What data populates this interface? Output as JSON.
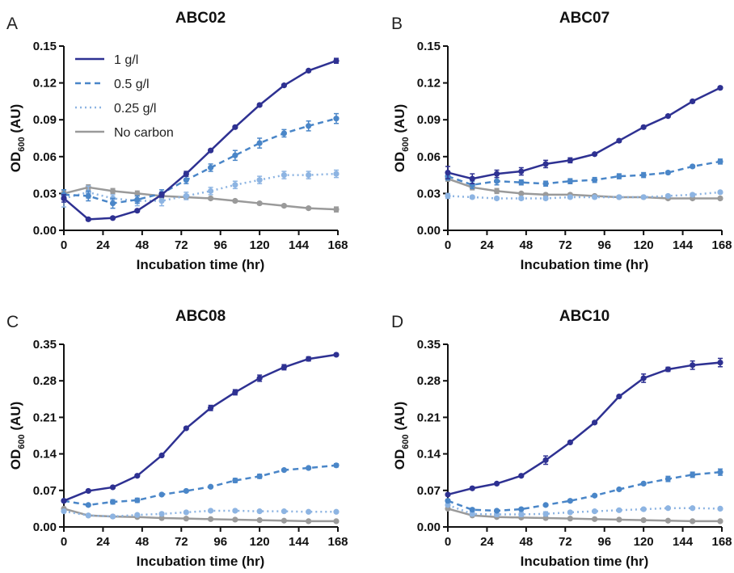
{
  "chart_data": [
    {
      "type": "line",
      "panel_letter": "A",
      "title": "ABC02",
      "xlabel": "Incubation time (hr)",
      "ylabel": {
        "main": "OD",
        "sub": "600",
        "suffix": " (AU)"
      },
      "x": [
        0,
        15,
        30,
        45,
        60,
        75,
        90,
        105,
        120,
        135,
        150,
        167
      ],
      "xticks": [
        0,
        24,
        48,
        72,
        96,
        120,
        144,
        168
      ],
      "xlim": [
        0,
        168
      ],
      "ylim": [
        0,
        0.15
      ],
      "yticks": [
        "0.00",
        "0.03",
        "0.06",
        "0.09",
        "0.12",
        "0.15"
      ],
      "legend": "top-left",
      "series": [
        {
          "name": "1 g/l",
          "color": "#2E3192",
          "dash": "solid",
          "values": [
            0.026,
            0.009,
            0.01,
            0.016,
            0.029,
            0.046,
            0.065,
            0.084,
            0.102,
            0.118,
            0.13,
            0.138
          ],
          "err": [
            0.003,
            0.001,
            0.001,
            0.001,
            0.002,
            0.002,
            0.001,
            0.001,
            0.001,
            0.001,
            0.001,
            0.002
          ]
        },
        {
          "name": "0.5 g/l",
          "color": "#4A86C8",
          "dash": "dashed",
          "values": [
            0.029,
            0.028,
            0.022,
            0.025,
            0.03,
            0.041,
            0.051,
            0.061,
            0.071,
            0.079,
            0.085,
            0.091
          ],
          "err": [
            0.004,
            0.004,
            0.004,
            0.003,
            0.003,
            0.003,
            0.003,
            0.004,
            0.004,
            0.003,
            0.004,
            0.004
          ]
        },
        {
          "name": "0.25 g/l",
          "color": "#8DB4E2",
          "dash": "dotted",
          "values": [
            0.026,
            0.031,
            0.026,
            0.024,
            0.024,
            0.028,
            0.032,
            0.037,
            0.041,
            0.045,
            0.045,
            0.046
          ],
          "err": [
            0.007,
            0.005,
            0.003,
            0.004,
            0.004,
            0.003,
            0.003,
            0.003,
            0.003,
            0.003,
            0.003,
            0.003
          ]
        },
        {
          "name": "No carbon",
          "color": "#9A9A9A",
          "dash": "solid",
          "values": [
            0.03,
            0.035,
            0.032,
            0.03,
            0.028,
            0.027,
            0.026,
            0.024,
            0.022,
            0.02,
            0.018,
            0.017
          ],
          "err": [
            0.002,
            0.002,
            0.002,
            0.002,
            0.002,
            0.001,
            0.001,
            0.001,
            0.001,
            0.001,
            0.001,
            0.002
          ]
        }
      ]
    },
    {
      "type": "line",
      "panel_letter": "B",
      "title": "ABC07",
      "xlabel": "Incubation time (hr)",
      "ylabel": {
        "main": "OD",
        "sub": "600",
        "suffix": " (AU)"
      },
      "x": [
        0,
        15,
        30,
        45,
        60,
        75,
        90,
        105,
        120,
        135,
        150,
        167
      ],
      "xticks": [
        0,
        24,
        48,
        72,
        96,
        120,
        144,
        168
      ],
      "xlim": [
        0,
        168
      ],
      "ylim": [
        0,
        0.15
      ],
      "yticks": [
        "0.00",
        "0.03",
        "0.06",
        "0.09",
        "0.12",
        "0.15"
      ],
      "series": [
        {
          "name": "1 g/l",
          "color": "#2E3192",
          "dash": "solid",
          "values": [
            0.047,
            0.042,
            0.046,
            0.048,
            0.054,
            0.057,
            0.062,
            0.073,
            0.084,
            0.093,
            0.105,
            0.116
          ],
          "err": [
            0.005,
            0.004,
            0.003,
            0.003,
            0.003,
            0.002,
            0.001,
            0.001,
            0.001,
            0.001,
            0.001,
            0.001
          ]
        },
        {
          "name": "0.5 g/l",
          "color": "#4A86C8",
          "dash": "dashed",
          "values": [
            0.044,
            0.037,
            0.04,
            0.039,
            0.038,
            0.04,
            0.041,
            0.044,
            0.045,
            0.047,
            0.052,
            0.056
          ],
          "err": [
            0.003,
            0.003,
            0.003,
            0.002,
            0.002,
            0.002,
            0.002,
            0.002,
            0.002,
            0.001,
            0.001,
            0.002
          ]
        },
        {
          "name": "0.25 g/l",
          "color": "#8DB4E2",
          "dash": "dotted",
          "values": [
            0.028,
            0.027,
            0.026,
            0.026,
            0.026,
            0.027,
            0.027,
            0.027,
            0.027,
            0.028,
            0.029,
            0.031
          ],
          "err": [
            0.002,
            0.001,
            0.001,
            0.001,
            0.001,
            0.001,
            0.001,
            0.001,
            0.001,
            0.001,
            0.001,
            0.001
          ]
        },
        {
          "name": "No carbon",
          "color": "#9A9A9A",
          "dash": "solid",
          "values": [
            0.042,
            0.035,
            0.032,
            0.03,
            0.029,
            0.029,
            0.028,
            0.027,
            0.027,
            0.026,
            0.026,
            0.026
          ],
          "err": [
            0.002,
            0.002,
            0.002,
            0.001,
            0.001,
            0.001,
            0.001,
            0.001,
            0.001,
            0.001,
            0.001,
            0.001
          ]
        }
      ]
    },
    {
      "type": "line",
      "panel_letter": "C",
      "title": "ABC08",
      "xlabel": "Incubation time (hr)",
      "ylabel": {
        "main": "OD",
        "sub": "600",
        "suffix": " (AU)"
      },
      "x": [
        0,
        15,
        30,
        45,
        60,
        75,
        90,
        105,
        120,
        135,
        150,
        167
      ],
      "xticks": [
        0,
        24,
        48,
        72,
        96,
        120,
        144,
        168
      ],
      "xlim": [
        0,
        168
      ],
      "ylim": [
        0,
        0.35
      ],
      "yticks": [
        "0.00",
        "0.07",
        "0.14",
        "0.21",
        "0.28",
        "0.35"
      ],
      "series": [
        {
          "name": "1 g/l",
          "color": "#2E3192",
          "dash": "solid",
          "values": [
            0.05,
            0.069,
            0.076,
            0.098,
            0.137,
            0.189,
            0.228,
            0.258,
            0.285,
            0.306,
            0.322,
            0.33
          ],
          "err": [
            0.002,
            0.002,
            0.002,
            0.002,
            0.002,
            0.002,
            0.005,
            0.005,
            0.006,
            0.005,
            0.004,
            0.002
          ]
        },
        {
          "name": "0.5 g/l",
          "color": "#4A86C8",
          "dash": "dashed",
          "values": [
            0.05,
            0.042,
            0.048,
            0.051,
            0.062,
            0.069,
            0.077,
            0.089,
            0.097,
            0.109,
            0.113,
            0.118
          ],
          "err": [
            0.002,
            0.002,
            0.004,
            0.004,
            0.002,
            0.002,
            0.002,
            0.004,
            0.004,
            0.002,
            0.002,
            0.003
          ]
        },
        {
          "name": "0.25 g/l",
          "color": "#8DB4E2",
          "dash": "dotted",
          "values": [
            0.03,
            0.022,
            0.02,
            0.023,
            0.025,
            0.028,
            0.031,
            0.031,
            0.03,
            0.03,
            0.029,
            0.029
          ],
          "err": [
            0.002,
            0.001,
            0.001,
            0.001,
            0.001,
            0.001,
            0.001,
            0.001,
            0.001,
            0.001,
            0.001,
            0.001
          ]
        },
        {
          "name": "No carbon",
          "color": "#9A9A9A",
          "dash": "solid",
          "values": [
            0.035,
            0.022,
            0.02,
            0.019,
            0.017,
            0.016,
            0.015,
            0.014,
            0.013,
            0.012,
            0.011,
            0.011
          ],
          "err": [
            0.002,
            0.001,
            0.001,
            0.001,
            0.001,
            0.001,
            0.001,
            0.001,
            0.001,
            0.001,
            0.001,
            0.001
          ]
        }
      ]
    },
    {
      "type": "line",
      "panel_letter": "D",
      "title": "ABC10",
      "xlabel": "Incubation time (hr)",
      "ylabel": {
        "main": "OD",
        "sub": "600",
        "suffix": " (AU)"
      },
      "x": [
        0,
        15,
        30,
        45,
        60,
        75,
        90,
        105,
        120,
        135,
        150,
        167
      ],
      "xticks": [
        0,
        24,
        48,
        72,
        96,
        120,
        144,
        168
      ],
      "xlim": [
        0,
        168
      ],
      "ylim": [
        0,
        0.35
      ],
      "yticks": [
        "0.00",
        "0.07",
        "0.14",
        "0.21",
        "0.28",
        "0.35"
      ],
      "series": [
        {
          "name": "1 g/l",
          "color": "#2E3192",
          "dash": "solid",
          "values": [
            0.062,
            0.074,
            0.083,
            0.098,
            0.128,
            0.162,
            0.2,
            0.25,
            0.285,
            0.302,
            0.31,
            0.315
          ],
          "err": [
            0.002,
            0.002,
            0.002,
            0.002,
            0.008,
            0.002,
            0.002,
            0.002,
            0.008,
            0.004,
            0.008,
            0.008
          ]
        },
        {
          "name": "0.5 g/l",
          "color": "#4A86C8",
          "dash": "dashed",
          "values": [
            0.05,
            0.033,
            0.031,
            0.034,
            0.042,
            0.05,
            0.06,
            0.072,
            0.083,
            0.092,
            0.1,
            0.105
          ],
          "err": [
            0.003,
            0.002,
            0.002,
            0.002,
            0.002,
            0.002,
            0.002,
            0.002,
            0.002,
            0.005,
            0.005,
            0.006
          ]
        },
        {
          "name": "0.25 g/l",
          "color": "#8DB4E2",
          "dash": "dotted",
          "values": [
            0.042,
            0.025,
            0.024,
            0.024,
            0.025,
            0.028,
            0.03,
            0.032,
            0.034,
            0.036,
            0.036,
            0.035
          ],
          "err": [
            0.002,
            0.004,
            0.004,
            0.004,
            0.004,
            0.002,
            0.002,
            0.002,
            0.002,
            0.002,
            0.002,
            0.002
          ]
        },
        {
          "name": "No carbon",
          "color": "#9A9A9A",
          "dash": "solid",
          "values": [
            0.035,
            0.022,
            0.019,
            0.018,
            0.017,
            0.016,
            0.015,
            0.014,
            0.013,
            0.012,
            0.011,
            0.011
          ],
          "err": [
            0.002,
            0.001,
            0.001,
            0.001,
            0.001,
            0.001,
            0.001,
            0.001,
            0.001,
            0.001,
            0.001,
            0.001
          ]
        }
      ]
    }
  ]
}
